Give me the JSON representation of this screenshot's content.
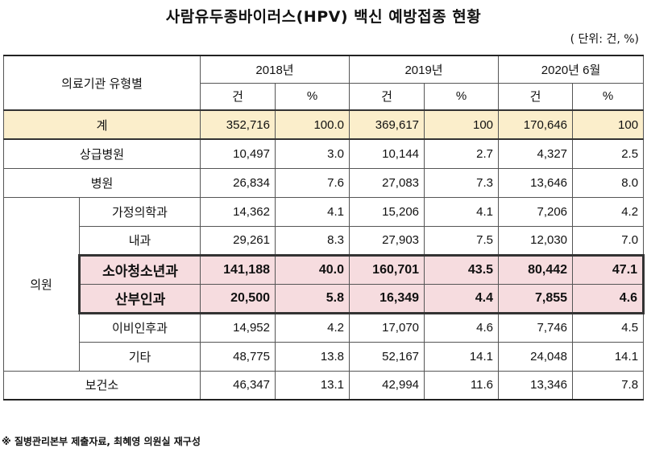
{
  "title": "사람유두종바이러스(HPV) 백신 예방접종 현황",
  "unit": "( 단위: 건, %)",
  "header": {
    "row_label": "의료기관 유형별",
    "years": [
      "2018년",
      "2019년",
      "2020년 6월"
    ],
    "count": "건",
    "pct": "%"
  },
  "rows": {
    "total": {
      "label": "계",
      "v": [
        "352,716",
        "100.0",
        "369,617",
        "100",
        "170,646",
        "100"
      ]
    },
    "sangeup": {
      "label": "상급병원",
      "v": [
        "10,497",
        "3.0",
        "10,144",
        "2.7",
        "4,327",
        "2.5"
      ]
    },
    "byeongwon": {
      "label": "병원",
      "v": [
        "26,834",
        "7.6",
        "27,083",
        "7.3",
        "13,646",
        "8.0"
      ]
    },
    "clinic_group": "의원",
    "family": {
      "label": "가정의학과",
      "v": [
        "14,362",
        "4.1",
        "15,206",
        "4.1",
        "7,206",
        "4.2"
      ]
    },
    "internal": {
      "label": "내과",
      "v": [
        "29,261",
        "8.3",
        "27,903",
        "7.5",
        "12,030",
        "7.0"
      ]
    },
    "pediatrics": {
      "label": "소아청소년과",
      "v": [
        "141,188",
        "40.0",
        "160,701",
        "43.5",
        "80,442",
        "47.1"
      ]
    },
    "obgyn": {
      "label": "산부인과",
      "v": [
        "20,500",
        "5.8",
        "16,349",
        "4.4",
        "7,855",
        "4.6"
      ]
    },
    "ent": {
      "label": "이비인후과",
      "v": [
        "14,952",
        "4.2",
        "17,070",
        "4.6",
        "7,746",
        "4.5"
      ]
    },
    "other": {
      "label": "기타",
      "v": [
        "48,775",
        "13.8",
        "52,167",
        "14.1",
        "24,048",
        "14.1"
      ]
    },
    "health_center": {
      "label": "보건소",
      "v": [
        "46,347",
        "13.1",
        "42,994",
        "11.6",
        "13,346",
        "7.8"
      ]
    }
  },
  "footnote": "※ 질병관리본부 제출자료, 최혜영 의원실 재구성"
}
